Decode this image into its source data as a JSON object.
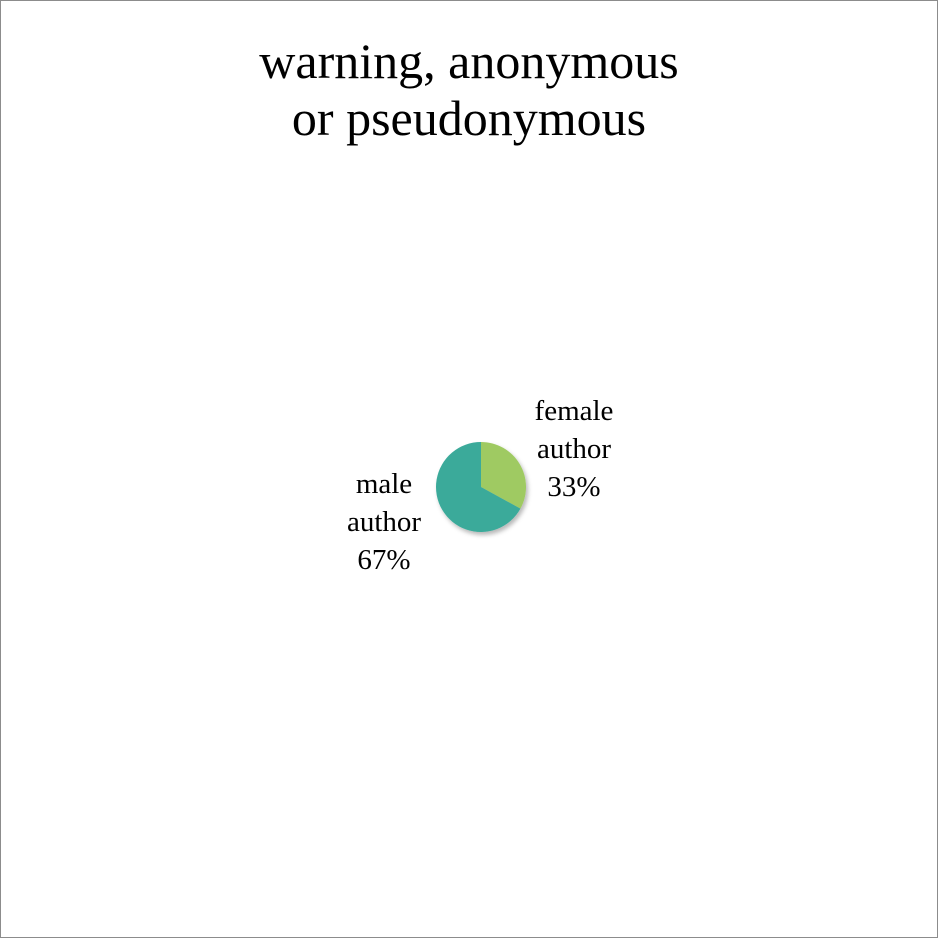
{
  "chart_data": {
    "type": "pie",
    "title": [
      "warning, anonymous",
      "or pseudonymous"
    ],
    "slices": [
      {
        "label": [
          "female",
          "author"
        ],
        "value": 33,
        "value_label": "33%",
        "color": "#9fca62"
      },
      {
        "label": [
          "male",
          "author"
        ],
        "value": 67,
        "value_label": "67%",
        "color": "#3aaa9a"
      }
    ],
    "legend": "none",
    "start": "12 o'clock",
    "direction": "clockwise"
  }
}
